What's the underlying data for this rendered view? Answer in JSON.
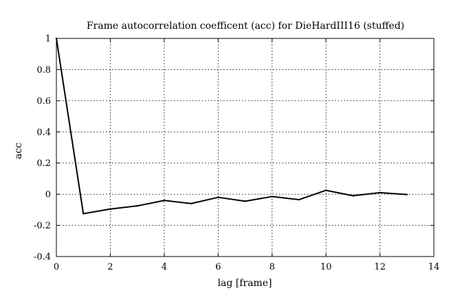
{
  "chart_data": {
    "type": "line",
    "title": "Frame autocorrelation coefficent (acc) for DieHardIII16 (stuffed)",
    "xlabel": "lag [frame]",
    "ylabel": "acc",
    "xlim": [
      0,
      14
    ],
    "ylim": [
      -0.4,
      1
    ],
    "x_ticks": [
      0,
      2,
      4,
      6,
      8,
      10,
      12,
      14
    ],
    "y_ticks": [
      -0.4,
      -0.2,
      0,
      0.2,
      0.4,
      0.6,
      0.8,
      1
    ],
    "x_tick_labels": [
      "0",
      "2",
      "4",
      "6",
      "8",
      "10",
      "12",
      "14"
    ],
    "y_tick_labels": [
      "-0.4",
      "-0.2",
      "0",
      "0.2",
      "0.4",
      "0.6",
      "0.8",
      "1"
    ],
    "grid": true,
    "series": [
      {
        "x": [
          0,
          1,
          2,
          3,
          4,
          5,
          6,
          7,
          8,
          9,
          10,
          11,
          12,
          13
        ],
        "y": [
          1.0,
          -0.125,
          -0.095,
          -0.075,
          -0.04,
          -0.06,
          -0.02,
          -0.045,
          -0.015,
          -0.035,
          0.025,
          -0.01,
          0.01,
          -0.002
        ],
        "color": "#000000"
      }
    ]
  }
}
